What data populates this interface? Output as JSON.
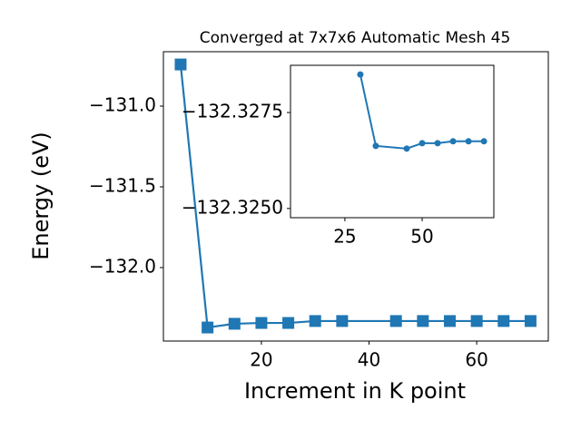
{
  "chart_data": [
    {
      "type": "line",
      "title": "Converged at 7x7x6 Automatic Mesh 45",
      "x_label": "Increment in K point",
      "y_label": "Energy (eV)",
      "x": [
        5,
        10,
        15,
        20,
        25,
        30,
        35,
        45,
        50,
        55,
        60,
        65,
        70
      ],
      "series": [
        {
          "color": "#1f77b4",
          "marker": "square",
          "values": [
            -130.742,
            -132.371,
            -132.348,
            -132.343,
            -132.343,
            -132.331,
            -132.331,
            -132.331,
            -132.331,
            -132.331,
            -132.331,
            -132.331,
            -132.331
          ]
        }
      ],
      "xlim": [
        1.8,
        73.3
      ],
      "ylim": [
        -132.455,
        -130.663
      ],
      "xticks": [
        20,
        40,
        60
      ],
      "yticks": [
        {
          "value": -131,
          "label": "−131.0"
        },
        {
          "value": -131.5,
          "label": "−131.5"
        },
        {
          "value": -132,
          "label": "−132.0"
        }
      ]
    },
    {
      "type": "line",
      "x": [
        30,
        35,
        45,
        50,
        55,
        60,
        65,
        70
      ],
      "series": [
        {
          "color": "#1f77b4",
          "marker": "circle",
          "values": [
            -132.32849,
            -132.32663,
            -132.32656,
            -132.3267,
            -132.3267,
            -132.32675,
            -132.32675,
            -132.32675
          ]
        }
      ],
      "xlim": [
        7.4,
        73.2
      ],
      "ylim": [
        -132.32476,
        -132.32873
      ],
      "xticks": [
        25,
        50
      ],
      "yticks": [
        {
          "value": -132.3275,
          "label": "−132.3275"
        },
        {
          "value": -132.325,
          "label": "−132.3250"
        }
      ]
    }
  ]
}
